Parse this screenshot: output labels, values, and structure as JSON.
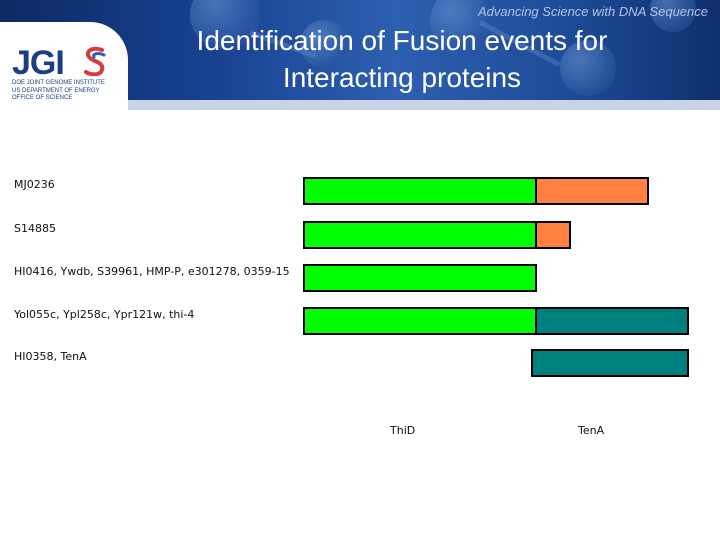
{
  "header": {
    "tagline": "Advancing Science with DNA Sequence",
    "title_line1": "Identification of Fusion events for",
    "title_line2": "Interacting proteins",
    "logo": {
      "mark": "JGI",
      "line1": "DOE JOINT GENOME INSTITUTE",
      "line2": "US DEPARTMENT OF ENERGY",
      "line3": "OFFICE OF SCIENCE"
    }
  },
  "colors": {
    "thid": "#00ff00",
    "tena_fused": "#ff8040",
    "tena": "#007f7f",
    "header": "#17408f"
  },
  "proteins": [
    {
      "label": "MJ0236",
      "segments": [
        "thid",
        "tena_fused"
      ]
    },
    {
      "label": "S14885",
      "segments": [
        "thid",
        "tena_fused"
      ]
    },
    {
      "label": "HI0416, Ywdb, S39961, HMP-P, e301278, 0359-15",
      "segments": [
        "thid"
      ]
    },
    {
      "label": "Yol055c, Ypl258c, Ypr121w, thi-4",
      "segments": [
        "thid",
        "tena"
      ]
    },
    {
      "label": "HI0358, TenA",
      "segments": [
        "tena"
      ]
    }
  ],
  "domains": {
    "thid": "ThiD",
    "tena": "TenA"
  }
}
